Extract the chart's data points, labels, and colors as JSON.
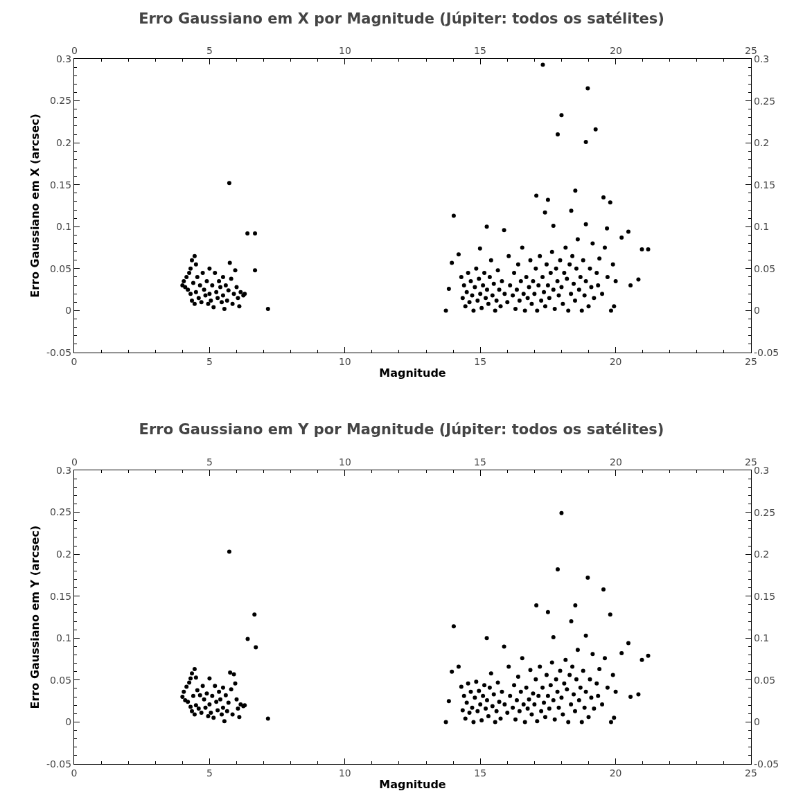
{
  "chart_data": [
    {
      "type": "scatter",
      "title": "Erro Gaussiano em X por Magnitude (Júpiter: todos os satélites)",
      "xlabel": "Magnitude",
      "ylabel": "Erro Gaussiano em X (arcsec)",
      "color": "#000000",
      "marker": "circle",
      "xlim": [
        0,
        25
      ],
      "xticks": [
        0,
        5,
        10,
        15,
        20,
        25
      ],
      "x2lim": [
        0,
        25
      ],
      "x2ticks": [
        0,
        5,
        10,
        15,
        20,
        25
      ],
      "ylim": [
        -0.05,
        0.3
      ],
      "yticks": [
        -0.05,
        0,
        0.05,
        0.1,
        0.15,
        0.2,
        0.25,
        0.3
      ],
      "y2lim": [
        -0.05,
        0.3
      ],
      "y2ticks": [
        -0.05,
        0,
        0.05,
        0.1,
        0.15,
        0.2,
        0.25,
        0.3
      ],
      "x": [
        4.0,
        4.05,
        4.1,
        4.15,
        4.2,
        4.25,
        4.3,
        4.3,
        4.35,
        4.35,
        4.4,
        4.45,
        4.45,
        4.5,
        4.5,
        4.55,
        4.6,
        4.65,
        4.7,
        4.75,
        4.8,
        4.85,
        4.9,
        4.95,
        5.0,
        5.0,
        5.05,
        5.1,
        5.15,
        5.2,
        5.25,
        5.3,
        5.35,
        5.4,
        5.45,
        5.5,
        5.5,
        5.55,
        5.6,
        5.65,
        5.7,
        5.75,
        5.8,
        5.85,
        5.9,
        5.95,
        6.0,
        6.05,
        6.1,
        6.15,
        6.25,
        6.3,
        5.73,
        6.4,
        6.68,
        6.68,
        7.16,
        13.73,
        13.84,
        13.95,
        14.02,
        14.2,
        14.3,
        14.35,
        14.4,
        14.45,
        14.5,
        14.55,
        14.6,
        14.65,
        14.7,
        14.75,
        14.8,
        14.85,
        14.9,
        14.95,
        14.99,
        15.0,
        15.05,
        15.1,
        15.15,
        15.2,
        15.24,
        15.25,
        15.3,
        15.35,
        15.4,
        15.45,
        15.5,
        15.55,
        15.6,
        15.65,
        15.7,
        15.75,
        15.8,
        15.88,
        15.9,
        16.0,
        16.05,
        16.1,
        16.2,
        16.25,
        16.3,
        16.35,
        16.4,
        16.45,
        16.5,
        16.55,
        16.6,
        16.65,
        16.7,
        16.75,
        16.8,
        16.85,
        16.9,
        16.95,
        17.0,
        17.05,
        17.07,
        17.1,
        17.15,
        17.2,
        17.25,
        17.31,
        17.3,
        17.35,
        17.39,
        17.4,
        17.45,
        17.5,
        17.5,
        17.55,
        17.6,
        17.65,
        17.7,
        17.7,
        17.75,
        17.8,
        17.86,
        17.85,
        17.9,
        17.95,
        18.0,
        18.0,
        18.05,
        18.1,
        18.15,
        18.2,
        18.25,
        18.3,
        18.36,
        18.35,
        18.4,
        18.45,
        18.51,
        18.5,
        18.55,
        18.6,
        18.65,
        18.7,
        18.75,
        18.8,
        18.85,
        18.9,
        18.9,
        18.9,
        18.97,
        19.0,
        19.05,
        19.1,
        19.15,
        19.2,
        19.26,
        19.3,
        19.35,
        19.4,
        19.5,
        19.55,
        19.6,
        19.68,
        19.7,
        19.8,
        19.83,
        19.9,
        19.94,
        20.0,
        20.22,
        20.47,
        20.55,
        20.84,
        20.97,
        21.2
      ],
      "values": [
        0.03,
        0.035,
        0.028,
        0.04,
        0.025,
        0.045,
        0.05,
        0.02,
        0.06,
        0.012,
        0.033,
        0.065,
        0.008,
        0.055,
        0.022,
        0.04,
        0.015,
        0.03,
        0.01,
        0.045,
        0.025,
        0.018,
        0.035,
        0.008,
        0.05,
        0.02,
        0.012,
        0.03,
        0.004,
        0.045,
        0.022,
        0.015,
        0.035,
        0.028,
        0.01,
        0.04,
        0.018,
        0.002,
        0.03,
        0.012,
        0.024,
        0.057,
        0.038,
        0.008,
        0.02,
        0.048,
        0.028,
        0.015,
        0.005,
        0.022,
        0.018,
        0.02,
        0.152,
        0.092,
        0.092,
        0.048,
        0.002,
        0,
        0.026,
        0.057,
        0.113,
        0.067,
        0.04,
        0.015,
        0.03,
        0.005,
        0.022,
        0.045,
        0.01,
        0.035,
        0.018,
        0,
        0.028,
        0.05,
        0.012,
        0.038,
        0.074,
        0.02,
        0.003,
        0.03,
        0.045,
        0.015,
        0.1,
        0.025,
        0.008,
        0.04,
        0.06,
        0.018,
        0.032,
        0,
        0.012,
        0.048,
        0.025,
        0.005,
        0.035,
        0.096,
        0.02,
        0.01,
        0.065,
        0.03,
        0.018,
        0.045,
        0.002,
        0.025,
        0.055,
        0.012,
        0.035,
        0.075,
        0.02,
        0,
        0.04,
        0.015,
        0.028,
        0.06,
        0.008,
        0.035,
        0.02,
        0.05,
        0.137,
        0,
        0.03,
        0.065,
        0.012,
        0.293,
        0.04,
        0.022,
        0.117,
        0.005,
        0.055,
        0.132,
        0.03,
        0.015,
        0.045,
        0.07,
        0.101,
        0.025,
        0.002,
        0.05,
        0.21,
        0.035,
        0.018,
        0.06,
        0.233,
        0.028,
        0.008,
        0.045,
        0.075,
        0.038,
        0,
        0.055,
        0.119,
        0.02,
        0.065,
        0.032,
        0.143,
        0.012,
        0.05,
        0.085,
        0.025,
        0.04,
        0,
        0.06,
        0.018,
        0.201,
        0.103,
        0.035,
        0.265,
        0.005,
        0.05,
        0.028,
        0.08,
        0.015,
        0.216,
        0.045,
        0.03,
        0.062,
        0.02,
        0.135,
        0.075,
        0.098,
        0.04,
        0.129,
        0,
        0.055,
        0.005,
        0.035,
        0.087,
        0.094,
        0.03,
        0.037,
        0.073,
        0.073
      ]
    },
    {
      "type": "scatter",
      "title": "Erro Gaussiano em Y por Magnitude (Júpiter: todos os satélites)",
      "xlabel": "Magnitude",
      "ylabel": "Erro Gaussiano em Y (arcsec)",
      "color": "#000000",
      "marker": "circle",
      "xlim": [
        0,
        25
      ],
      "xticks": [
        0,
        5,
        10,
        15,
        20,
        25
      ],
      "x2lim": [
        0,
        25
      ],
      "x2ticks": [
        0,
        5,
        10,
        15,
        20,
        25
      ],
      "ylim": [
        -0.05,
        0.3
      ],
      "yticks": [
        -0.05,
        0,
        0.05,
        0.1,
        0.15,
        0.2,
        0.25,
        0.3
      ],
      "y2lim": [
        -0.05,
        0.3
      ],
      "y2ticks": [
        -0.05,
        0,
        0.05,
        0.1,
        0.15,
        0.2,
        0.25,
        0.3
      ],
      "x": [
        4.0,
        4.05,
        4.1,
        4.15,
        4.2,
        4.25,
        4.3,
        4.3,
        4.35,
        4.35,
        4.4,
        4.45,
        4.45,
        4.5,
        4.5,
        4.55,
        4.6,
        4.65,
        4.7,
        4.75,
        4.8,
        4.85,
        4.9,
        4.95,
        5.0,
        5.0,
        5.05,
        5.1,
        5.15,
        5.2,
        5.25,
        5.3,
        5.35,
        5.4,
        5.45,
        5.5,
        5.5,
        5.55,
        5.6,
        5.65,
        5.7,
        5.76,
        5.9,
        5.8,
        5.85,
        5.95,
        6.0,
        6.05,
        6.1,
        6.15,
        6.25,
        6.3,
        5.73,
        6.41,
        6.66,
        6.71,
        7.16,
        13.73,
        13.84,
        13.95,
        14.02,
        14.2,
        14.3,
        14.35,
        14.4,
        14.45,
        14.5,
        14.55,
        14.6,
        14.65,
        14.7,
        14.75,
        14.8,
        14.85,
        14.9,
        14.95,
        15.0,
        15.05,
        15.1,
        15.15,
        15.2,
        15.24,
        15.25,
        15.3,
        15.35,
        15.4,
        15.45,
        15.5,
        15.55,
        15.6,
        15.65,
        15.7,
        15.75,
        15.8,
        15.88,
        15.9,
        16.0,
        16.05,
        16.1,
        16.2,
        16.25,
        16.3,
        16.35,
        16.4,
        16.45,
        16.5,
        16.55,
        16.6,
        16.65,
        16.7,
        16.75,
        16.8,
        16.85,
        16.9,
        16.95,
        17.0,
        17.05,
        17.07,
        17.1,
        17.15,
        17.2,
        17.25,
        17.3,
        17.35,
        17.4,
        17.45,
        17.5,
        17.5,
        17.55,
        17.6,
        17.65,
        17.7,
        17.7,
        17.75,
        17.8,
        17.86,
        17.85,
        17.9,
        17.95,
        18.0,
        18.0,
        18.05,
        18.1,
        18.15,
        18.2,
        18.25,
        18.3,
        18.36,
        18.35,
        18.4,
        18.45,
        18.51,
        18.5,
        18.55,
        18.6,
        18.65,
        18.7,
        18.75,
        18.8,
        18.85,
        18.9,
        18.9,
        18.97,
        19.0,
        19.05,
        19.1,
        19.15,
        19.2,
        19.3,
        19.35,
        19.4,
        19.5,
        19.55,
        19.6,
        19.7,
        19.8,
        19.83,
        19.9,
        19.94,
        20.0,
        20.22,
        20.47,
        20.55,
        20.84,
        20.97,
        21.2
      ],
      "values": [
        0.03,
        0.036,
        0.026,
        0.042,
        0.024,
        0.047,
        0.052,
        0.018,
        0.058,
        0.013,
        0.031,
        0.063,
        0.009,
        0.053,
        0.02,
        0.038,
        0.016,
        0.032,
        0.011,
        0.043,
        0.027,
        0.017,
        0.034,
        0.007,
        0.052,
        0.021,
        0.011,
        0.031,
        0.005,
        0.043,
        0.024,
        0.014,
        0.036,
        0.027,
        0.009,
        0.041,
        0.017,
        0.001,
        0.032,
        0.013,
        0.023,
        0.059,
        0.057,
        0.039,
        0.009,
        0.046,
        0.027,
        0.016,
        0.006,
        0.021,
        0.019,
        0.02,
        0.203,
        0.099,
        0.128,
        0.089,
        0.004,
        0,
        0.025,
        0.06,
        0.114,
        0.066,
        0.042,
        0.014,
        0.031,
        0.004,
        0.023,
        0.046,
        0.011,
        0.036,
        0.017,
        0,
        0.029,
        0.048,
        0.013,
        0.037,
        0.021,
        0.002,
        0.031,
        0.044,
        0.016,
        0.1,
        0.026,
        0.007,
        0.041,
        0.058,
        0.019,
        0.033,
        0,
        0.013,
        0.047,
        0.024,
        0.004,
        0.036,
        0.09,
        0.021,
        0.011,
        0.066,
        0.031,
        0.017,
        0.044,
        0.003,
        0.026,
        0.054,
        0.013,
        0.036,
        0.076,
        0.021,
        0,
        0.041,
        0.016,
        0.027,
        0.062,
        0.009,
        0.034,
        0.021,
        0.051,
        0.139,
        0.001,
        0.031,
        0.066,
        0.013,
        0.041,
        0.023,
        0.006,
        0.056,
        0.131,
        0.031,
        0.016,
        0.044,
        0.071,
        0.101,
        0.026,
        0.003,
        0.051,
        0.182,
        0.036,
        0.017,
        0.061,
        0.249,
        0.029,
        0.009,
        0.046,
        0.074,
        0.039,
        0,
        0.056,
        0.12,
        0.021,
        0.066,
        0.033,
        0.139,
        0.013,
        0.051,
        0.086,
        0.026,
        0.041,
        0,
        0.061,
        0.017,
        0.103,
        0.036,
        0.172,
        0.006,
        0.051,
        0.029,
        0.081,
        0.016,
        0.046,
        0.031,
        0.063,
        0.021,
        0.158,
        0.076,
        0.041,
        0.128,
        0,
        0.056,
        0.005,
        0.036,
        0.082,
        0.094,
        0.03,
        0.033,
        0.074,
        0.079
      ]
    }
  ]
}
